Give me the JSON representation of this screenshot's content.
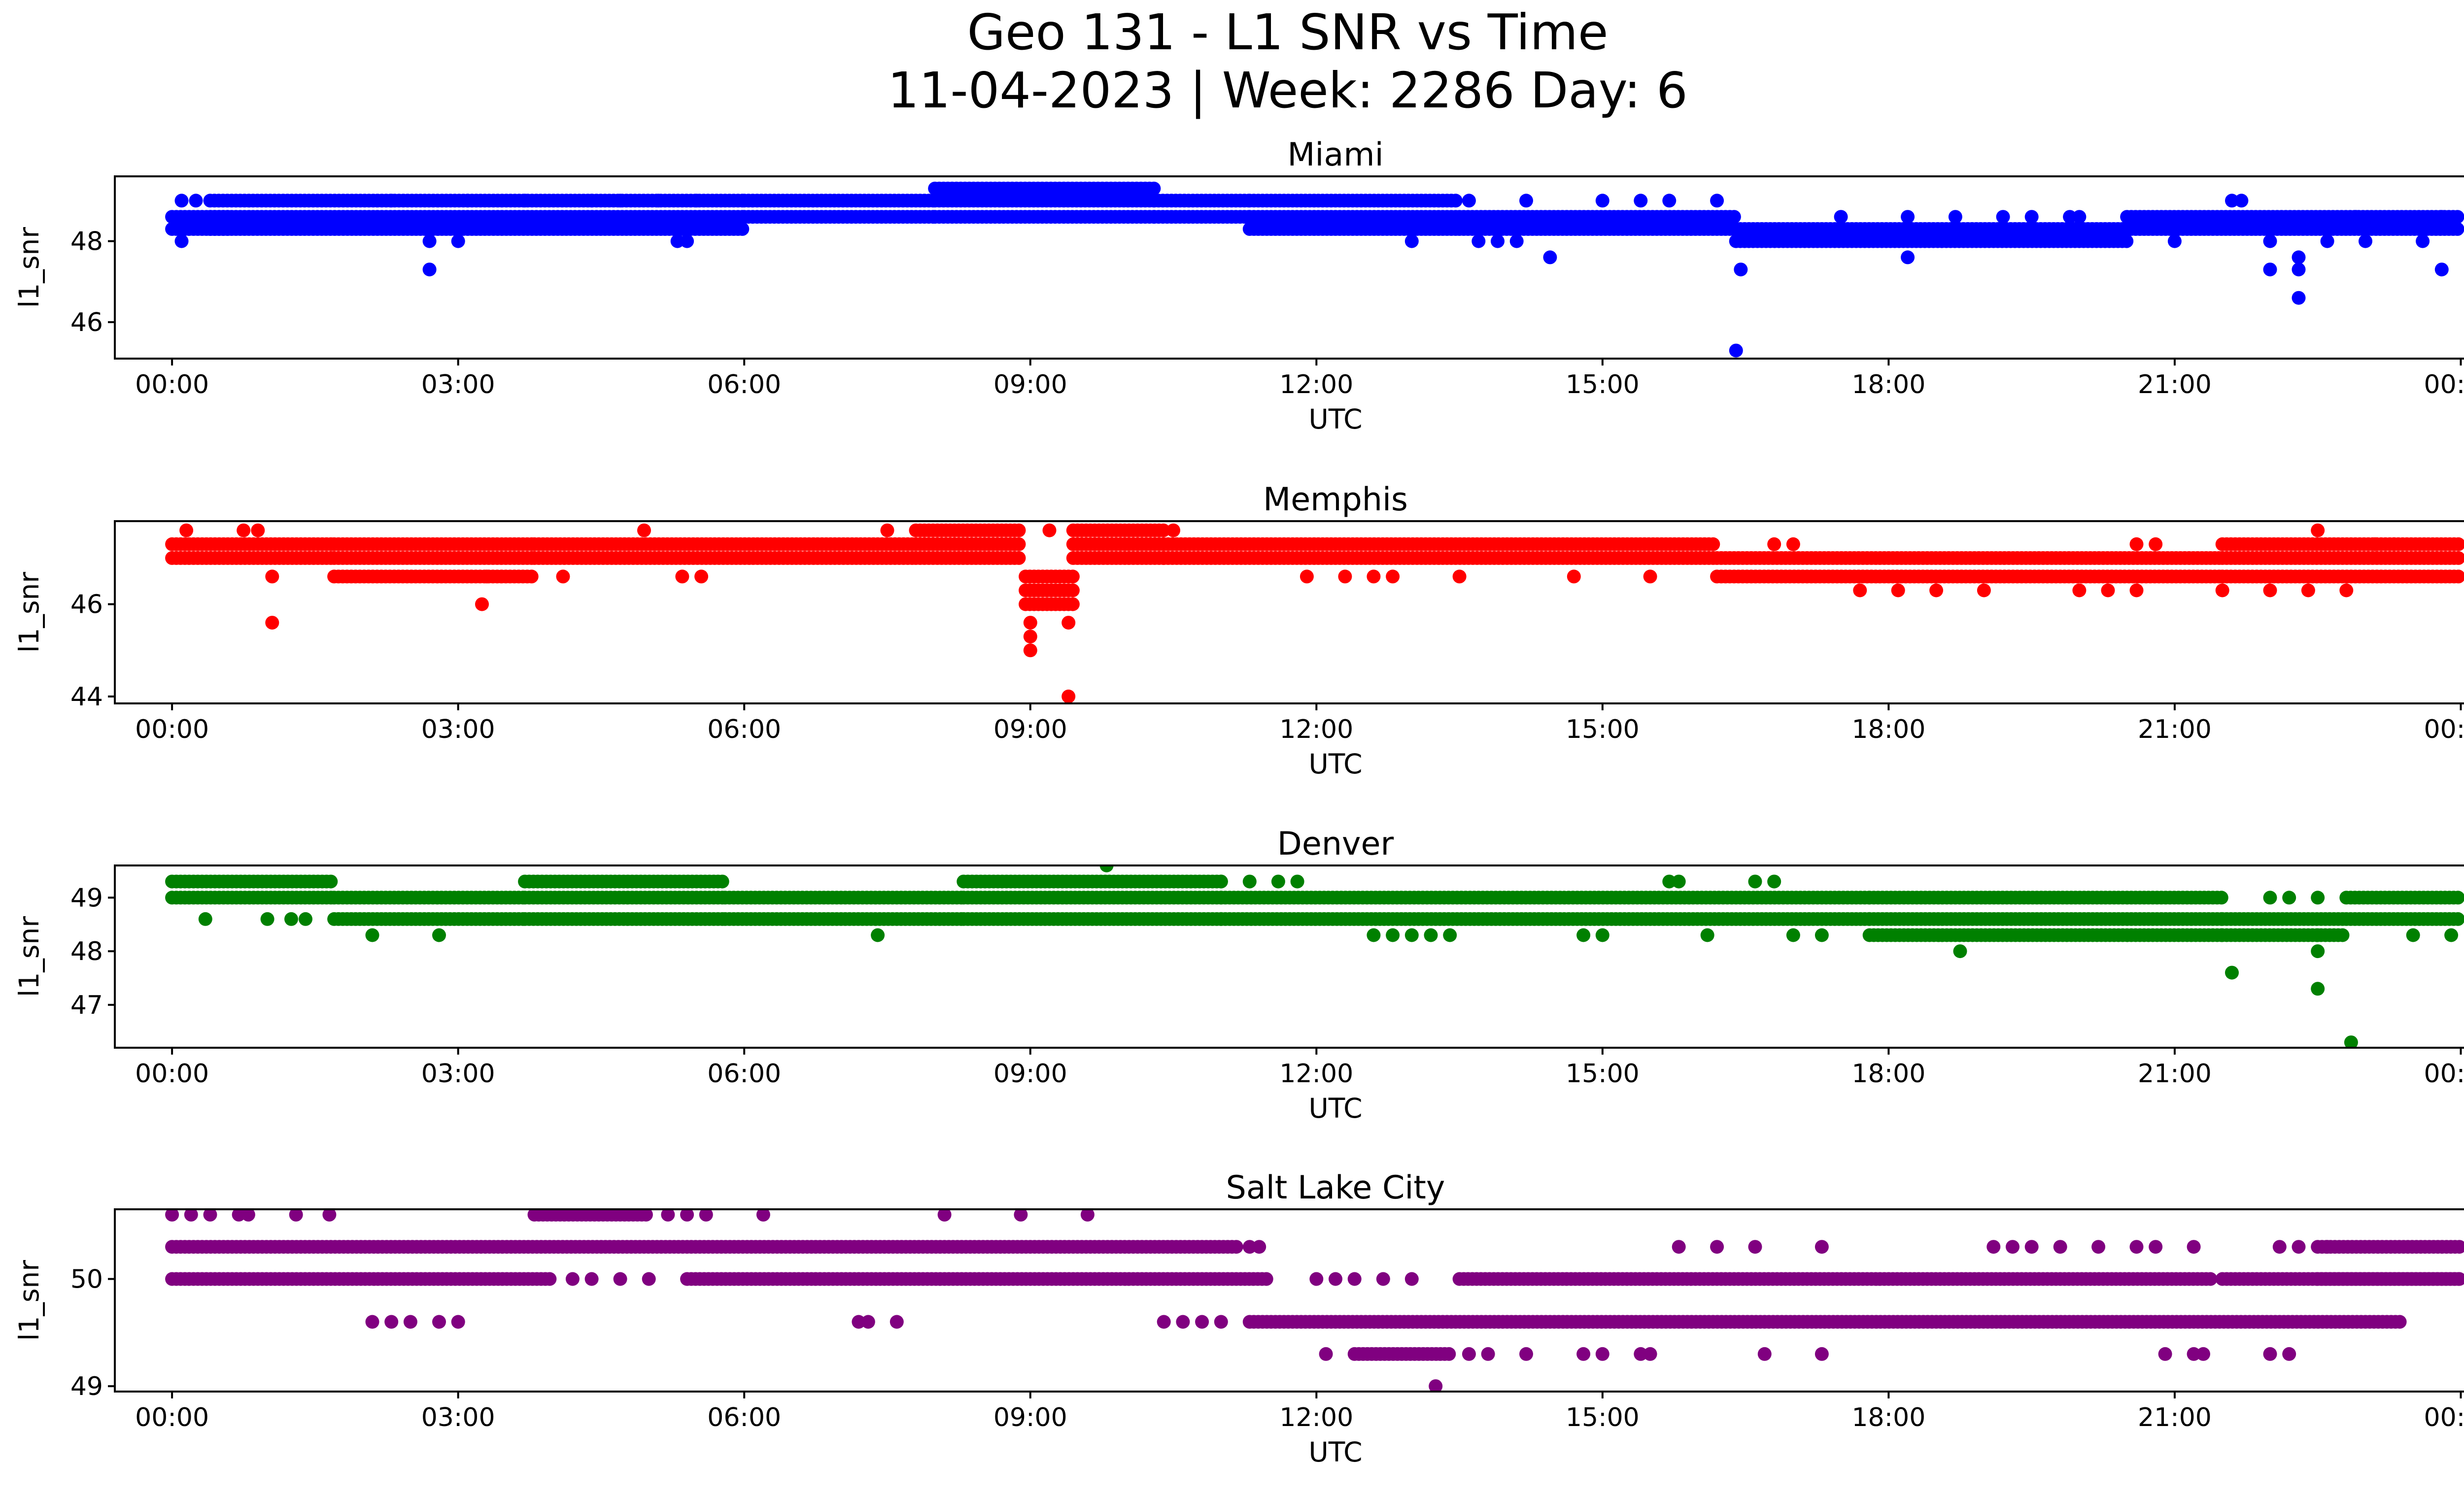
{
  "title_line1": "Geo 131 - L1 SNR vs Time",
  "title_line2": "11-04-2023 | Week: 2286 Day: 6",
  "chart_data": [
    {
      "type": "scatter",
      "title": "Miami",
      "xlabel": "UTC",
      "ylabel": "l1_snr",
      "color": "#0000ff",
      "xlim": [
        -0.6,
        25.0
      ],
      "ylim": [
        45.1,
        49.6
      ],
      "xticks": [
        0,
        3,
        6,
        9,
        12,
        15,
        18,
        21,
        24
      ],
      "xtick_labels": [
        "00:00",
        "03:00",
        "06:00",
        "09:00",
        "12:00",
        "15:00",
        "18:00",
        "21:00",
        "00:00"
      ],
      "yticks": [
        46,
        48
      ],
      "yticks_labels": [
        "46",
        "48"
      ],
      "bands": [
        {
          "levels": [
            48.3,
            48.6
          ],
          "x_range": [
            0.0,
            0.6
          ]
        },
        {
          "levels": [
            48.3,
            48.6,
            49.0
          ],
          "x_range": [
            0.4,
            6.0
          ]
        },
        {
          "levels": [
            48.6,
            49.0
          ],
          "x_range": [
            6.0,
            8.0
          ]
        },
        {
          "levels": [
            48.6,
            49.0,
            49.3
          ],
          "x_range": [
            8.0,
            10.3
          ]
        },
        {
          "levels": [
            48.6,
            49.0
          ],
          "x_range": [
            10.3,
            11.3
          ]
        },
        {
          "levels": [
            48.3,
            48.6,
            49.0
          ],
          "x_range": [
            11.3,
            13.5
          ]
        },
        {
          "levels": [
            48.3,
            48.6
          ],
          "x_range": [
            13.5,
            16.4
          ]
        },
        {
          "levels": [
            48.0,
            48.3
          ],
          "x_range": [
            16.4,
            20.5
          ]
        },
        {
          "levels": [
            48.3,
            48.6
          ],
          "x_range": [
            20.5,
            24.0
          ]
        }
      ],
      "sparse_levels": [
        {
          "level": 49.0,
          "x": [
            0.1,
            0.25,
            2.3,
            3.1,
            3.7,
            4.4,
            4.7,
            5.1,
            5.5,
            13.6,
            14.2,
            15.0,
            15.4,
            15.7,
            16.2,
            21.6
          ]
        },
        {
          "level": 48.0,
          "x": [
            0.1,
            2.7,
            3.0,
            5.3,
            5.4,
            13.0,
            13.7,
            13.9,
            14.1,
            21.0,
            22.0,
            22.6,
            23.0,
            23.6
          ]
        },
        {
          "level": 48.6,
          "x": [
            17.5,
            18.2,
            18.7,
            19.2,
            19.5,
            19.9,
            20.0,
            22.9,
            23.8
          ]
        }
      ],
      "outliers": [
        {
          "x": 2.7,
          "y": 47.3
        },
        {
          "x": 14.45,
          "y": 47.6
        },
        {
          "x": 16.45,
          "y": 47.3
        },
        {
          "x": 16.4,
          "y": 45.3
        },
        {
          "x": 18.2,
          "y": 47.6
        },
        {
          "x": 22.0,
          "y": 47.3
        },
        {
          "x": 22.3,
          "y": 47.6
        },
        {
          "x": 22.3,
          "y": 47.3
        },
        {
          "x": 22.3,
          "y": 46.6
        },
        {
          "x": 23.8,
          "y": 47.3
        },
        {
          "x": 21.7,
          "y": 49.0
        },
        {
          "x": 16.4,
          "y": 48.0
        }
      ]
    },
    {
      "type": "scatter",
      "title": "Memphis",
      "xlabel": "UTC",
      "ylabel": "l1_snr",
      "color": "#ff0000",
      "xlim": [
        -0.6,
        25.0
      ],
      "ylim": [
        43.85,
        47.8
      ],
      "xticks": [
        0,
        3,
        6,
        9,
        12,
        15,
        18,
        21,
        24
      ],
      "xtick_labels": [
        "00:00",
        "03:00",
        "06:00",
        "09:00",
        "12:00",
        "15:00",
        "18:00",
        "21:00",
        "00:00"
      ],
      "yticks": [
        44,
        46
      ],
      "yticks_labels": [
        "44",
        "46"
      ],
      "bands": [
        {
          "levels": [
            47.0,
            47.3
          ],
          "x_range": [
            0.0,
            1.7
          ]
        },
        {
          "levels": [
            46.6,
            47.0,
            47.3
          ],
          "x_range": [
            1.7,
            3.8
          ]
        },
        {
          "levels": [
            47.0,
            47.3
          ],
          "x_range": [
            3.8,
            7.8
          ]
        },
        {
          "levels": [
            47.0,
            47.3,
            47.6
          ],
          "x_range": [
            7.8,
            8.9
          ]
        },
        {
          "levels": [
            46.0,
            46.3,
            46.6
          ],
          "x_range": [
            8.95,
            9.45
          ]
        },
        {
          "levels": [
            47.0,
            47.3,
            47.6
          ],
          "x_range": [
            9.45,
            10.4
          ]
        },
        {
          "levels": [
            47.0,
            47.3
          ],
          "x_range": [
            10.4,
            16.2
          ]
        },
        {
          "levels": [
            46.6,
            47.0
          ],
          "x_range": [
            16.2,
            21.5
          ]
        },
        {
          "levels": [
            46.6,
            47.0,
            47.3
          ],
          "x_range": [
            21.5,
            24.0
          ]
        }
      ],
      "sparse_levels": [
        {
          "level": 47.6,
          "x": [
            0.15,
            0.75,
            0.9,
            4.95,
            7.5,
            10.5,
            22.5
          ]
        },
        {
          "level": 46.6,
          "x": [
            1.05,
            3.3,
            4.1,
            5.35,
            5.55,
            11.9,
            12.3,
            12.6,
            12.8,
            13.5,
            14.7,
            15.5
          ]
        },
        {
          "level": 46.3,
          "x": [
            17.7,
            18.1,
            18.5,
            19.0,
            20.0,
            20.3,
            20.6,
            21.5,
            22.0,
            22.4,
            22.8
          ]
        },
        {
          "level": 47.3,
          "x": [
            16.8,
            17.0,
            20.6,
            20.8,
            23.1,
            23.3
          ]
        }
      ],
      "outliers": [
        {
          "x": 1.05,
          "y": 45.6
        },
        {
          "x": 3.25,
          "y": 46.0
        },
        {
          "x": 9.0,
          "y": 45.6
        },
        {
          "x": 9.0,
          "y": 45.3
        },
        {
          "x": 9.0,
          "y": 45.0
        },
        {
          "x": 9.4,
          "y": 45.6
        },
        {
          "x": 9.4,
          "y": 44.0
        },
        {
          "x": 9.2,
          "y": 47.6
        }
      ]
    },
    {
      "type": "scatter",
      "title": "Denver",
      "xlabel": "UTC",
      "ylabel": "l1_snr",
      "color": "#008000",
      "xlim": [
        -0.6,
        25.0
      ],
      "ylim": [
        46.2,
        49.6
      ],
      "xticks": [
        0,
        3,
        6,
        9,
        12,
        15,
        18,
        21,
        24
      ],
      "xtick_labels": [
        "00:00",
        "03:00",
        "06:00",
        "09:00",
        "12:00",
        "15:00",
        "18:00",
        "21:00",
        "00:00"
      ],
      "yticks": [
        47,
        48,
        49
      ],
      "yticks_labels": [
        "47",
        "48",
        "49"
      ],
      "bands": [
        {
          "levels": [
            49.0,
            49.3
          ],
          "x_range": [
            0.0,
            1.7
          ]
        },
        {
          "levels": [
            48.6,
            49.0
          ],
          "x_range": [
            1.7,
            3.7
          ]
        },
        {
          "levels": [
            48.6,
            49.0,
            49.3
          ],
          "x_range": [
            3.7,
            5.8
          ]
        },
        {
          "levels": [
            48.6,
            49.0
          ],
          "x_range": [
            5.8,
            8.3
          ]
        },
        {
          "levels": [
            48.6,
            49.0,
            49.3
          ],
          "x_range": [
            8.3,
            11.0
          ]
        },
        {
          "levels": [
            48.6,
            49.0
          ],
          "x_range": [
            11.0,
            17.8
          ]
        },
        {
          "levels": [
            48.3,
            48.6,
            49.0
          ],
          "x_range": [
            17.8,
            21.5
          ]
        },
        {
          "levels": [
            48.3,
            48.6
          ],
          "x_range": [
            21.5,
            22.8
          ]
        },
        {
          "levels": [
            48.6,
            49.0
          ],
          "x_range": [
            22.8,
            24.0
          ]
        }
      ],
      "sparse_levels": [
        {
          "level": 48.6,
          "x": [
            0.35,
            1.0,
            1.25,
            1.4
          ]
        },
        {
          "level": 48.3,
          "x": [
            2.1,
            2.8,
            7.4,
            12.6,
            12.8,
            13.0,
            13.2,
            13.4,
            14.8,
            15.0,
            16.1,
            17.0,
            17.3,
            22.5,
            23.5,
            23.9
          ]
        },
        {
          "level": 49.3,
          "x": [
            11.0,
            11.3,
            11.6,
            11.8,
            15.7,
            15.8,
            16.6,
            16.8
          ]
        },
        {
          "level": 49.0,
          "x": [
            22.0,
            22.2,
            22.5
          ]
        }
      ],
      "outliers": [
        {
          "x": 9.8,
          "y": 49.6
        },
        {
          "x": 18.75,
          "y": 48.0
        },
        {
          "x": 21.6,
          "y": 47.6
        },
        {
          "x": 22.5,
          "y": 48.0
        },
        {
          "x": 22.5,
          "y": 47.3
        },
        {
          "x": 22.85,
          "y": 46.3
        }
      ]
    },
    {
      "type": "scatter",
      "title": "Salt Lake City",
      "xlabel": "UTC",
      "ylabel": "l1_snr",
      "color": "#800080",
      "xlim": [
        -0.6,
        25.0
      ],
      "ylim": [
        48.95,
        50.65
      ],
      "xticks": [
        0,
        3,
        6,
        9,
        12,
        15,
        18,
        21,
        24
      ],
      "xtick_labels": [
        "00:00",
        "03:00",
        "06:00",
        "09:00",
        "12:00",
        "15:00",
        "18:00",
        "21:00",
        "00:00"
      ],
      "yticks": [
        49,
        50
      ],
      "yticks_labels": [
        "49",
        "50"
      ],
      "bands": [
        {
          "levels": [
            50.3
          ],
          "x_range": [
            0.0,
            11.2
          ]
        },
        {
          "levels": [
            50.0
          ],
          "x_range": [
            0.0,
            4.0
          ]
        },
        {
          "levels": [
            50.0
          ],
          "x_range": [
            5.4,
            11.5
          ]
        },
        {
          "levels": [
            49.6
          ],
          "x_range": [
            11.3,
            23.4
          ]
        },
        {
          "levels": [
            50.0
          ],
          "x_range": [
            13.5,
            21.4
          ]
        },
        {
          "levels": [
            50.0,
            50.3
          ],
          "x_range": [
            22.5,
            24.0
          ]
        },
        {
          "levels": [
            50.6
          ],
          "x_range": [
            3.8,
            5.0
          ]
        },
        {
          "levels": [
            49.3
          ],
          "x_range": [
            12.4,
            13.4
          ]
        },
        {
          "levels": [
            50.0
          ],
          "x_range": [
            21.5,
            24.0
          ]
        }
      ],
      "sparse_levels": [
        {
          "level": 50.6,
          "x": [
            0.0,
            0.2,
            0.4,
            0.7,
            0.8,
            1.3,
            1.65,
            5.2,
            5.4,
            5.6,
            6.2,
            8.1,
            8.9,
            9.6
          ]
        },
        {
          "level": 49.6,
          "x": [
            2.1,
            2.3,
            2.5,
            2.8,
            3.0,
            7.2,
            7.3,
            7.6,
            10.4,
            10.6,
            10.8,
            11.0
          ]
        },
        {
          "level": 50.0,
          "x": [
            4.2,
            4.4,
            4.7,
            5.0,
            12.0,
            12.2,
            12.4,
            12.7,
            13.0
          ]
        },
        {
          "level": 49.3,
          "x": [
            12.1,
            13.6,
            13.8,
            14.2,
            14.8,
            15.0,
            15.4,
            15.5,
            16.7,
            17.3,
            20.9,
            21.2,
            21.3,
            22.0,
            22.2
          ]
        },
        {
          "level": 50.3,
          "x": [
            11.3,
            11.4,
            15.8,
            16.2,
            16.6,
            17.3,
            19.1,
            19.3,
            19.5,
            19.8,
            20.2,
            20.6,
            20.8,
            21.2,
            22.1,
            22.3,
            22.6
          ]
        }
      ],
      "outliers": [
        {
          "x": 13.25,
          "y": 49.0
        }
      ]
    }
  ]
}
